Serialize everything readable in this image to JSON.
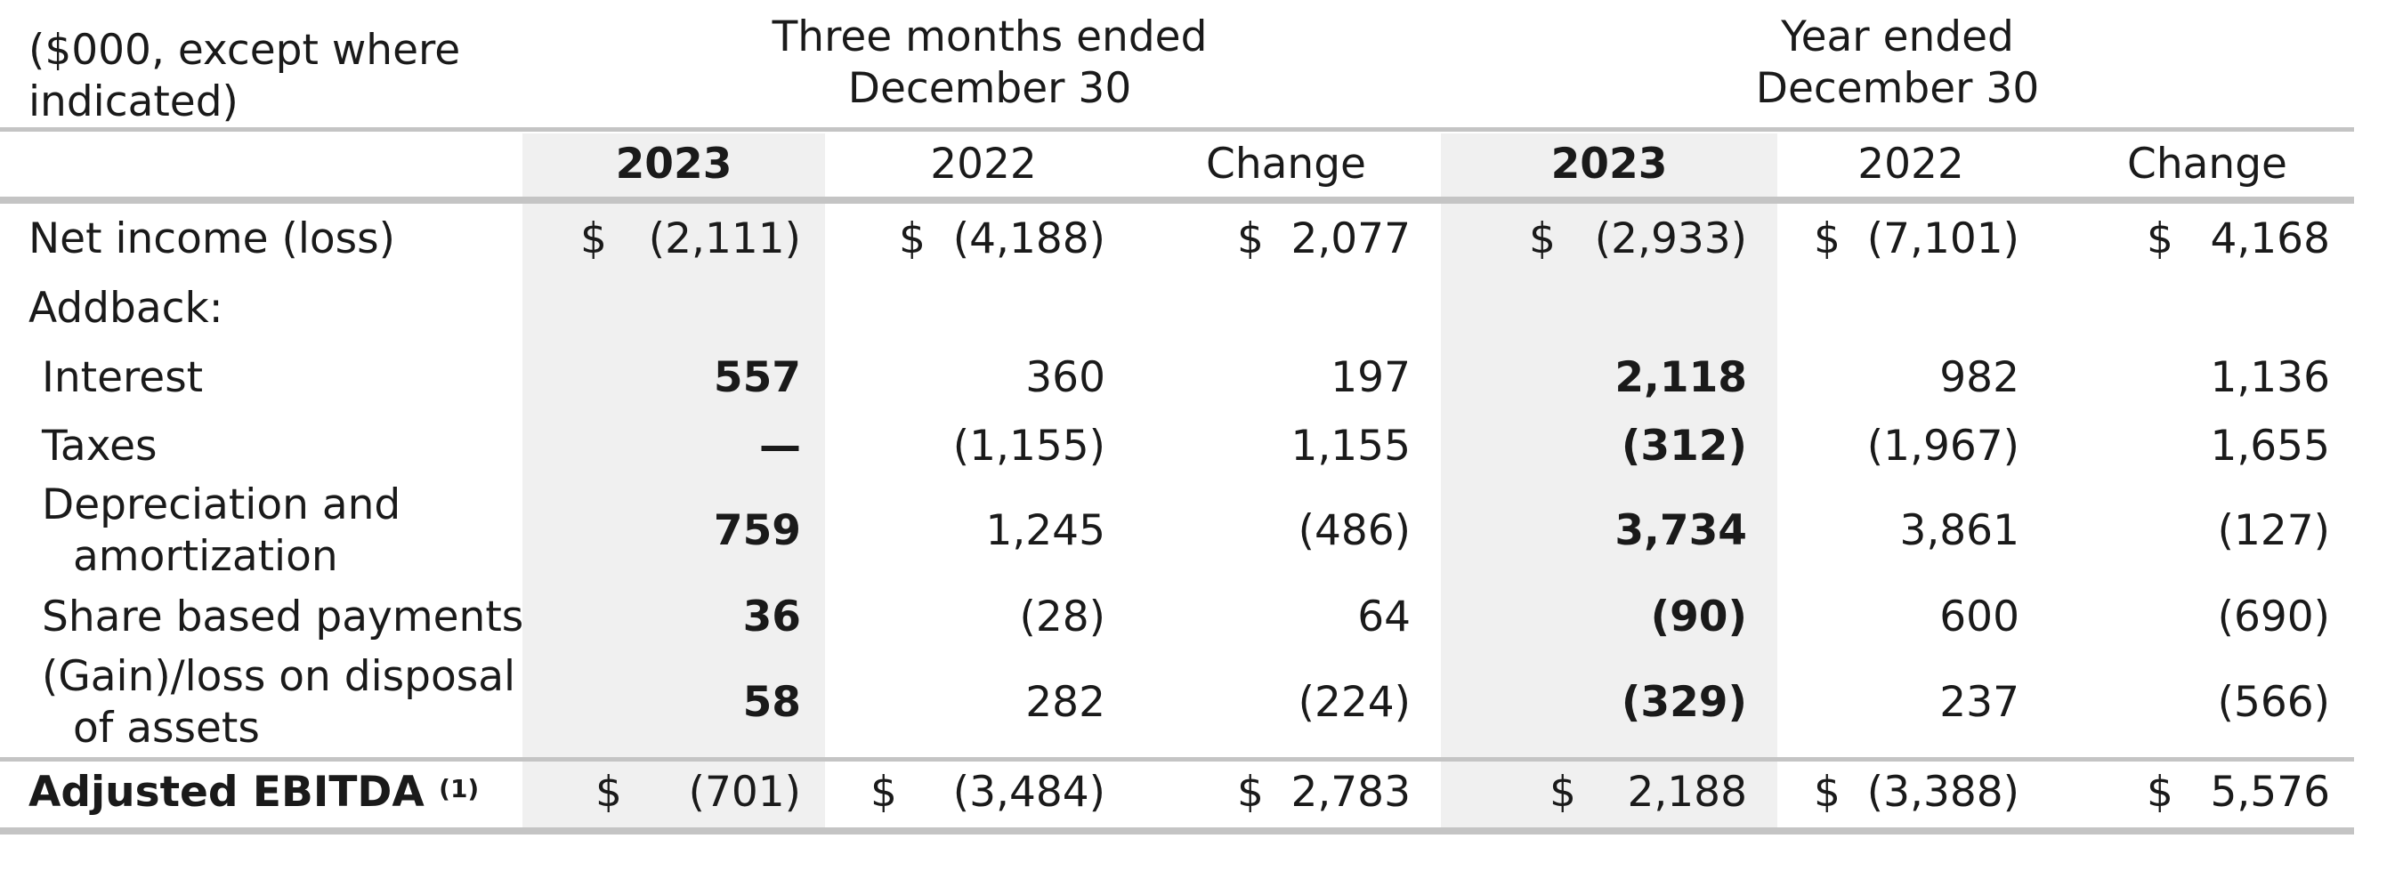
{
  "table": {
    "units_label": [
      "($000, except where",
      "indicated)"
    ],
    "group_headers": [
      [
        "Three months ended",
        "December 30"
      ],
      [
        "Year ended",
        "December 30"
      ]
    ],
    "column_headers": [
      "2023",
      "2022",
      "Change",
      "2023",
      "2022",
      "Change"
    ],
    "rows": [
      {
        "label": [
          "Net income (loss)"
        ],
        "bold": false,
        "dollar": true,
        "cells": [
          "(2,111)",
          "(4,188)",
          "2,077",
          "(2,933)",
          "(7,101)",
          "4,168"
        ]
      },
      {
        "label": [
          "Addback:"
        ],
        "bold": false,
        "dollar": false,
        "cells": []
      },
      {
        "label": [
          "Interest"
        ],
        "bold": false,
        "dollar": false,
        "indent": true,
        "cells": [
          "557",
          "360",
          "197",
          "2,118",
          "982",
          "1,136"
        ]
      },
      {
        "label": [
          "Taxes"
        ],
        "bold": false,
        "dollar": false,
        "indent": true,
        "cells": [
          "—",
          "(1,155)",
          "1,155",
          "(312)",
          "(1,967)",
          "1,655"
        ]
      },
      {
        "label": [
          "Depreciation and",
          "amortization"
        ],
        "bold": false,
        "dollar": false,
        "indent": true,
        "cells": [
          "759",
          "1,245",
          "(486)",
          "3,734",
          "3,861",
          "(127)"
        ]
      },
      {
        "label": [
          "Share based payments"
        ],
        "bold": false,
        "dollar": false,
        "indent": true,
        "cells": [
          "36",
          "(28)",
          "64",
          "(90)",
          "600",
          "(690)"
        ]
      },
      {
        "label": [
          "(Gain)/loss on disposal",
          "of assets"
        ],
        "bold": false,
        "dollar": false,
        "indent": true,
        "cells": [
          "58",
          "282",
          "(224)",
          "(329)",
          "237",
          "(566)"
        ]
      },
      {
        "label": [
          "Adjusted EBITDA"
        ],
        "footnote": "(1)",
        "bold": true,
        "dollar": true,
        "cells": [
          "(701)",
          "(3,484)",
          "2,783",
          "2,188",
          "(3,388)",
          "5,576"
        ]
      }
    ],
    "currency_symbol": "$"
  }
}
